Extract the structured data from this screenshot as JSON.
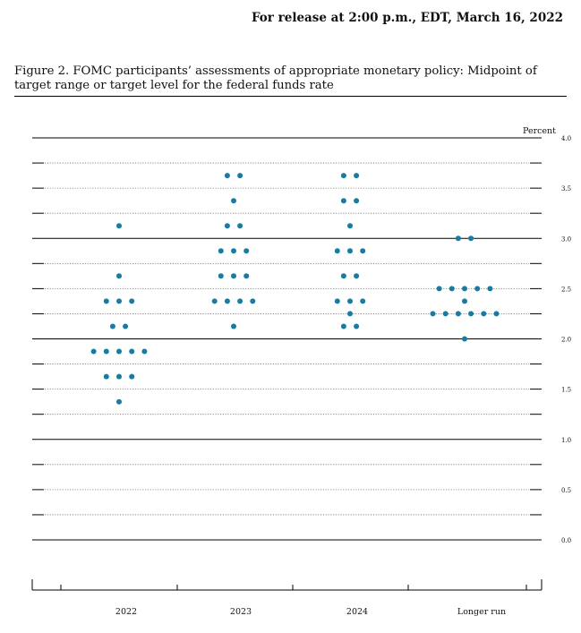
{
  "header": {
    "release_text": "For release at 2:00 p.m., EDT, March 16, 2022"
  },
  "figure": {
    "title": "Figure 2.  FOMC participants’ assessments of appropriate monetary policy: Midpoint of target range or target level for the federal funds rate"
  },
  "colors": {
    "dot": "#1a7aa0"
  },
  "chart_data": {
    "type": "scatter",
    "ylabel": "Percent",
    "ylim": [
      0.0,
      4.0
    ],
    "yticks": [
      4.0,
      3.5,
      3.0,
      2.5,
      2.0,
      1.5,
      1.0,
      0.5,
      0.0
    ],
    "ytick_labels": [
      "4.0",
      "3.5",
      "3.0",
      "2.5",
      "2.0",
      "1.5",
      "1.0",
      "0.5",
      "0.0"
    ],
    "minor_step": 0.125,
    "categories": [
      "2022",
      "2023",
      "2024",
      "Longer run"
    ],
    "dots": [
      {
        "category": "2022",
        "levels": [
          {
            "y": 3.125,
            "count": 1
          },
          {
            "y": 2.625,
            "count": 1
          },
          {
            "y": 2.375,
            "count": 3
          },
          {
            "y": 2.125,
            "count": 2
          },
          {
            "y": 1.875,
            "count": 5
          },
          {
            "y": 1.625,
            "count": 3
          },
          {
            "y": 1.375,
            "count": 1
          }
        ]
      },
      {
        "category": "2023",
        "levels": [
          {
            "y": 3.625,
            "count": 2
          },
          {
            "y": 3.375,
            "count": 1
          },
          {
            "y": 3.125,
            "count": 2
          },
          {
            "y": 2.875,
            "count": 3
          },
          {
            "y": 2.625,
            "count": 3
          },
          {
            "y": 2.375,
            "count": 4
          },
          {
            "y": 2.125,
            "count": 1
          }
        ]
      },
      {
        "category": "2024",
        "levels": [
          {
            "y": 3.625,
            "count": 2
          },
          {
            "y": 3.375,
            "count": 2
          },
          {
            "y": 3.125,
            "count": 1
          },
          {
            "y": 2.875,
            "count": 3
          },
          {
            "y": 2.625,
            "count": 2
          },
          {
            "y": 2.375,
            "count": 3
          },
          {
            "y": 2.25,
            "count": 1
          },
          {
            "y": 2.125,
            "count": 2
          }
        ]
      },
      {
        "category": "Longer run",
        "levels": [
          {
            "y": 3.0,
            "count": 2
          },
          {
            "y": 2.5,
            "count": 5
          },
          {
            "y": 2.375,
            "count": 1
          },
          {
            "y": 2.25,
            "count": 6
          },
          {
            "y": 2.0,
            "count": 1
          }
        ]
      }
    ]
  }
}
